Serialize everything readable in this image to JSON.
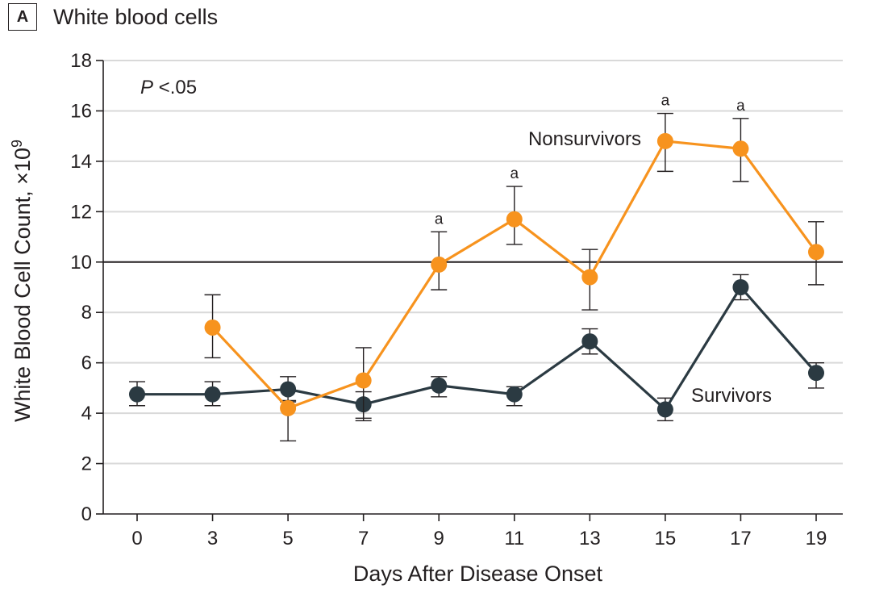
{
  "panel": {
    "letter": "A",
    "title": "White blood cells"
  },
  "colors": {
    "nonsurvivors": "#f7931e",
    "survivors": "#2b3a42",
    "grid": "#d9d9d9",
    "reference": "#231f20",
    "axis": "#231f20"
  },
  "chart_data": {
    "type": "line",
    "xlabel": "Days After Disease Onset",
    "ylabel": "White Blood Cell Count, ×10",
    "ylabel_superscript": "9",
    "x_ticks": [
      0,
      3,
      5,
      7,
      9,
      11,
      13,
      15,
      17,
      19
    ],
    "y_ticks": [
      0,
      2,
      4,
      6,
      8,
      10,
      12,
      14,
      16,
      18
    ],
    "ylim": [
      0,
      18
    ],
    "grid": true,
    "reference_line": 10,
    "annotation": {
      "p_italic": "P",
      "p_rest": " <.05"
    },
    "series": [
      {
        "name": "Nonsurvivors",
        "x": [
          3,
          5,
          7,
          9,
          11,
          13,
          15,
          17,
          19
        ],
        "y": [
          7.4,
          4.2,
          5.3,
          9.9,
          11.7,
          9.4,
          14.8,
          14.5,
          10.4
        ],
        "err_low": [
          6.2,
          2.9,
          3.8,
          8.9,
          10.7,
          8.1,
          13.6,
          13.2,
          9.1
        ],
        "err_high": [
          8.7,
          4.5,
          6.6,
          11.2,
          13.0,
          10.5,
          15.9,
          15.7,
          11.6
        ],
        "significance": [
          "",
          "",
          "",
          "a",
          "a",
          "",
          "a",
          "a",
          ""
        ]
      },
      {
        "name": "Survivors",
        "x": [
          0,
          3,
          5,
          7,
          9,
          11,
          13,
          15,
          17,
          19
        ],
        "y": [
          4.75,
          4.75,
          4.95,
          4.35,
          5.1,
          4.75,
          6.85,
          4.15,
          9.0,
          5.6
        ],
        "err_low": [
          4.3,
          4.3,
          4.45,
          3.7,
          4.65,
          4.3,
          6.35,
          3.7,
          8.5,
          5.0
        ],
        "err_high": [
          5.25,
          5.25,
          5.45,
          4.85,
          5.45,
          5.05,
          7.35,
          4.6,
          9.5,
          6.0
        ]
      }
    ]
  }
}
